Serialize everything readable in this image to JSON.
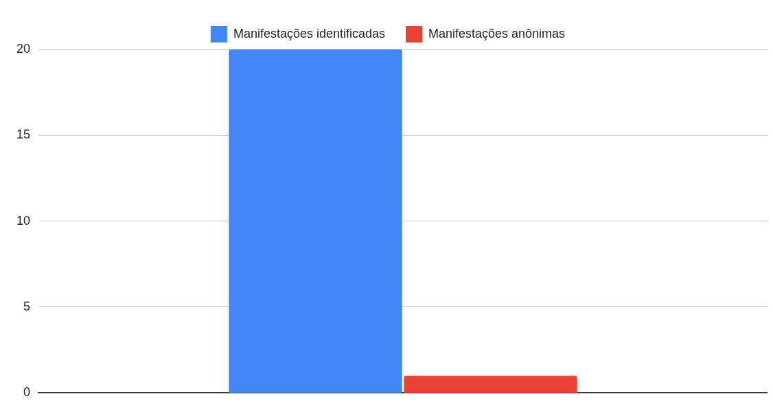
{
  "chart_data": {
    "type": "bar",
    "categories": [
      null
    ],
    "series": [
      {
        "name": "Manifestações identificadas",
        "color": "#4285f4",
        "values": [
          20
        ]
      },
      {
        "name": "Manifestações anônimas",
        "color": "#ea4335",
        "values": [
          1
        ]
      }
    ],
    "ylim": [
      0,
      20
    ],
    "yticks": [
      0,
      5,
      10,
      15,
      20
    ],
    "grid": "y",
    "legend": "top",
    "tick_labels": "y"
  }
}
